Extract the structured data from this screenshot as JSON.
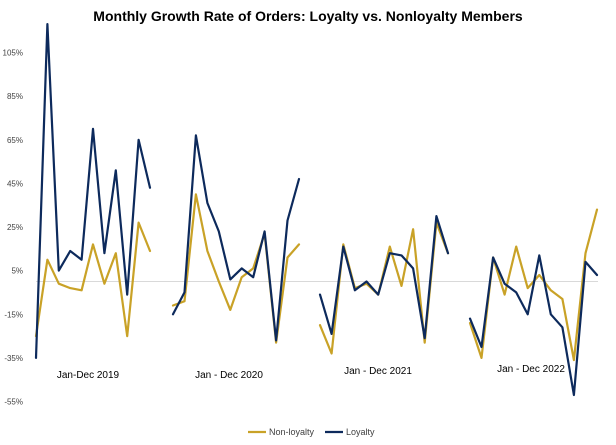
{
  "chart_data": {
    "type": "line",
    "title": "Monthly Growth Rate of Orders: Loyalty vs. Nonloyalty Members",
    "xlabel": "",
    "ylabel": "",
    "ylim": [
      -55,
      125
    ],
    "y_ticks": [
      "-55%",
      "-35%",
      "-15%",
      "5%",
      "25%",
      "45%",
      "65%",
      "85%",
      "105%"
    ],
    "y_tick_values": [
      -55,
      -35,
      -15,
      5,
      25,
      45,
      65,
      85,
      105
    ],
    "zero_line": 0,
    "grid": false,
    "legend_position": "bottom",
    "periods": [
      {
        "label": "Jan-Dec 2019",
        "months": 12
      },
      {
        "label": "Jan - Dec 2020",
        "months": 12
      },
      {
        "label": "Jan - Dec 2021",
        "months": 12
      },
      {
        "label": "Jan - Dec 2022",
        "months": 12
      }
    ],
    "series": [
      {
        "name": "Non-loyalty",
        "color": "#C9A227",
        "values": [
          [
            -25,
            10,
            -1,
            -3,
            -4,
            17,
            -1,
            13,
            -25,
            27,
            14
          ],
          [
            -11,
            -9,
            40,
            14,
            0,
            -13,
            2,
            6,
            22,
            -28,
            11,
            17
          ],
          [
            -20,
            -33,
            17,
            -3,
            -1,
            -6,
            16,
            -2,
            24,
            -28,
            27,
            13
          ],
          [
            -19,
            -35,
            11,
            -6,
            16,
            -3,
            3,
            -4,
            -8,
            -36,
            13,
            33
          ]
        ]
      },
      {
        "name": "Loyalty",
        "color": "#0D2A5C",
        "values": [
          [
            -35,
            118,
            5,
            14,
            10,
            70,
            13,
            51,
            -6,
            65,
            43
          ],
          [
            -15,
            -5,
            67,
            36,
            23,
            1,
            6,
            2,
            23,
            -27,
            28,
            47
          ],
          [
            -6,
            -24,
            16,
            -4,
            0,
            -6,
            13,
            12,
            6,
            -26,
            30,
            13
          ],
          [
            -17,
            -30,
            11,
            -1,
            -5,
            -15,
            12,
            -15,
            -21,
            -52,
            9,
            3
          ]
        ]
      }
    ]
  }
}
